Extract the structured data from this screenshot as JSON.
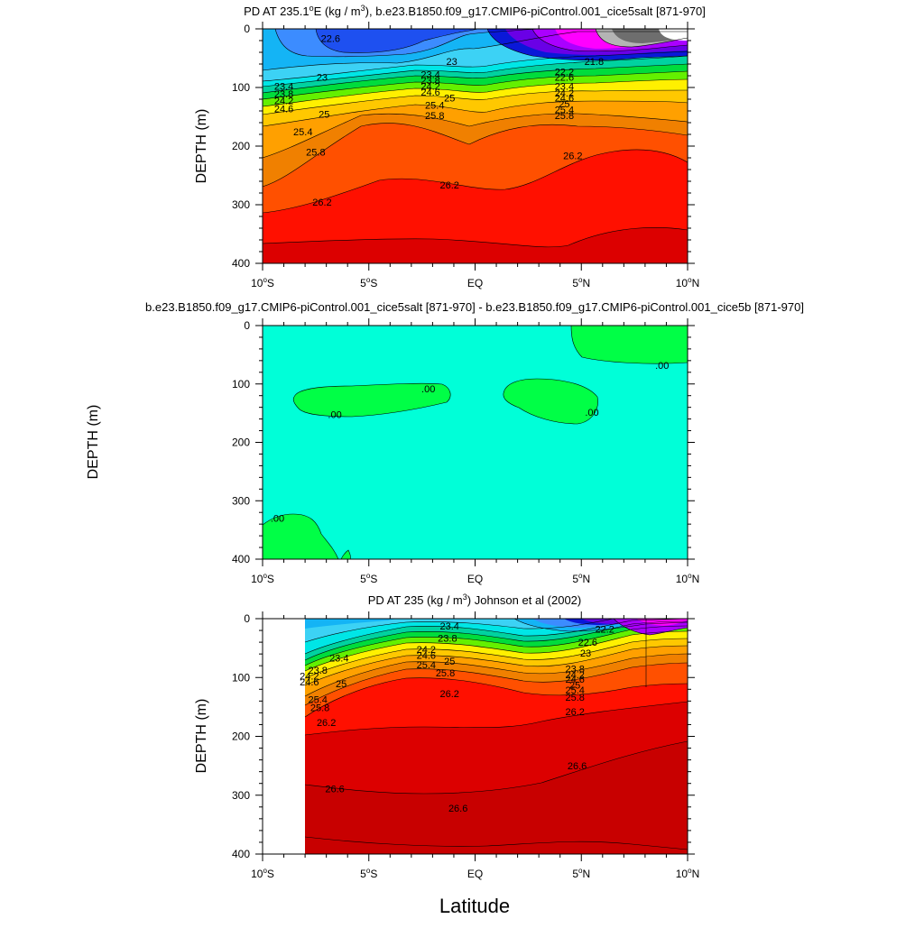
{
  "chart_data": [
    {
      "type": "contour",
      "title": "PD AT 235.1°E (kg / m³), b.e23.B1850.f09_g17.CMIP6-piControl.001_cice5salt [871-970]",
      "title_parts": {
        "main": "PD AT 235.1",
        "deg": "o",
        "unit": "E (kg / m",
        "sup": "3",
        "rest": "), b.e23.B1850.f09_g17.CMIP6-piControl.001_cice5salt [871-970]"
      },
      "ylabel": "DEPTH (m)",
      "xlim": [
        -10,
        10
      ],
      "ylim": [
        400,
        0
      ],
      "contour_labels": [
        {
          "text": "22.6",
          "lat": -6.8,
          "depth": 16
        },
        {
          "text": "23",
          "lat": -7.2,
          "depth": 82
        },
        {
          "text": "23",
          "lat": -1.1,
          "depth": 55
        },
        {
          "text": "23.4",
          "lat": -9.0,
          "depth": 98
        },
        {
          "text": "23.8",
          "lat": -9.0,
          "depth": 111
        },
        {
          "text": "24.2",
          "lat": -9.0,
          "depth": 122
        },
        {
          "text": "24.6",
          "lat": -9.0,
          "depth": 136
        },
        {
          "text": "25",
          "lat": -7.1,
          "depth": 145
        },
        {
          "text": "25.4",
          "lat": -8.1,
          "depth": 175
        },
        {
          "text": "25.8",
          "lat": -7.5,
          "depth": 210
        },
        {
          "text": "26.2",
          "lat": -7.2,
          "depth": 295
        },
        {
          "text": "23.4",
          "lat": -2.1,
          "depth": 78
        },
        {
          "text": "23.8",
          "lat": -2.1,
          "depth": 88
        },
        {
          "text": "24.2",
          "lat": -2.1,
          "depth": 98
        },
        {
          "text": "24.6",
          "lat": -2.1,
          "depth": 108
        },
        {
          "text": "25",
          "lat": -1.2,
          "depth": 118
        },
        {
          "text": "25.4",
          "lat": -1.9,
          "depth": 130
        },
        {
          "text": "25.8",
          "lat": -1.9,
          "depth": 148
        },
        {
          "text": "26.2",
          "lat": -1.2,
          "depth": 266
        },
        {
          "text": "21.8",
          "lat": 5.6,
          "depth": 55
        },
        {
          "text": "22.2",
          "lat": 4.2,
          "depth": 73
        },
        {
          "text": "22.6",
          "lat": 4.2,
          "depth": 82
        },
        {
          "text": "23.4",
          "lat": 4.2,
          "depth": 98
        },
        {
          "text": "24.2",
          "lat": 4.2,
          "depth": 109
        },
        {
          "text": "24.6",
          "lat": 4.2,
          "depth": 118
        },
        {
          "text": "25",
          "lat": 4.2,
          "depth": 128
        },
        {
          "text": "25.4",
          "lat": 4.2,
          "depth": 138
        },
        {
          "text": "25.8",
          "lat": 4.2,
          "depth": 148
        },
        {
          "text": "26.2",
          "lat": 4.6,
          "depth": 216
        }
      ]
    },
    {
      "type": "contour",
      "title": "b.e23.B1850.f09_g17.CMIP6-piControl.001_cice5salt [871-970] - b.e23.B1850.f09_g17.CMIP6-piControl.001_cice5b [871-970]",
      "ylabel": "DEPTH (m)",
      "xlim": [
        -10,
        10
      ],
      "ylim": [
        400,
        0
      ],
      "contour_labels": [
        {
          "text": ".00",
          "lat": -2.2,
          "depth": 108
        },
        {
          "text": ".00",
          "lat": -6.6,
          "depth": 152
        },
        {
          "text": ".00",
          "lat": 5.5,
          "depth": 148
        },
        {
          "text": ".00",
          "lat": 8.8,
          "depth": 68
        },
        {
          "text": ".00",
          "lat": -9.3,
          "depth": 330
        }
      ]
    },
    {
      "type": "contour",
      "title": "PD AT 235 (kg / m³) Johnson et al (2002)",
      "title_parts": {
        "main": "PD AT 235 (kg / m",
        "sup": "3",
        "rest": ") Johnson et al (2002)"
      },
      "ylabel": "DEPTH (m)",
      "xlim": [
        -10,
        10
      ],
      "ylim": [
        400,
        0
      ],
      "data_lat_range": [
        -8,
        10
      ],
      "contour_labels": [
        {
          "text": "23.4",
          "lat": -1.2,
          "depth": 12
        },
        {
          "text": "23.8",
          "lat": -1.3,
          "depth": 33
        },
        {
          "text": "24.2",
          "lat": -2.3,
          "depth": 52
        },
        {
          "text": "24.6",
          "lat": -2.3,
          "depth": 62
        },
        {
          "text": "25",
          "lat": -1.2,
          "depth": 72
        },
        {
          "text": "25.4",
          "lat": -2.3,
          "depth": 78
        },
        {
          "text": "25.8",
          "lat": -1.4,
          "depth": 92
        },
        {
          "text": "26.2",
          "lat": -1.2,
          "depth": 127
        },
        {
          "text": "23.4",
          "lat": -6.4,
          "depth": 67
        },
        {
          "text": "23.8",
          "lat": -7.4,
          "depth": 87
        },
        {
          "text": "24.2",
          "lat": -7.8,
          "depth": 97
        },
        {
          "text": "24.6",
          "lat": -7.8,
          "depth": 107
        },
        {
          "text": "25",
          "lat": -6.3,
          "depth": 110
        },
        {
          "text": "25.4",
          "lat": -7.4,
          "depth": 137
        },
        {
          "text": "25.8",
          "lat": -7.3,
          "depth": 151
        },
        {
          "text": "26.2",
          "lat": -7.0,
          "depth": 176
        },
        {
          "text": "26.6",
          "lat": -6.6,
          "depth": 289
        },
        {
          "text": "26.6",
          "lat": -0.8,
          "depth": 322
        },
        {
          "text": "26.6",
          "lat": 4.8,
          "depth": 250
        },
        {
          "text": "22.2",
          "lat": 6.1,
          "depth": 18
        },
        {
          "text": "22.6",
          "lat": 5.3,
          "depth": 40
        },
        {
          "text": "23",
          "lat": 5.2,
          "depth": 58
        },
        {
          "text": "23.8",
          "lat": 4.7,
          "depth": 85
        },
        {
          "text": "24.2",
          "lat": 4.7,
          "depth": 95
        },
        {
          "text": "24.6",
          "lat": 4.7,
          "depth": 103
        },
        {
          "text": "25",
          "lat": 4.7,
          "depth": 113
        },
        {
          "text": "25.4",
          "lat": 4.7,
          "depth": 121
        },
        {
          "text": "25.8",
          "lat": 4.7,
          "depth": 133
        },
        {
          "text": "26.2",
          "lat": 4.7,
          "depth": 158
        }
      ]
    }
  ],
  "axes": {
    "y_ticks": [
      "0",
      "100",
      "200",
      "300",
      "400"
    ],
    "x_ticks": [
      {
        "num": "10",
        "deg": "o",
        "hem": "S"
      },
      {
        "num": "5",
        "deg": "o",
        "hem": "S"
      },
      {
        "num": "EQ",
        "deg": "",
        "hem": ""
      },
      {
        "num": "5",
        "deg": "o",
        "hem": "N"
      },
      {
        "num": "10",
        "deg": "o",
        "hem": "N"
      }
    ],
    "xlabel": "Latitude",
    "ylabel_outer": "DEPTH (m)"
  },
  "colors": {
    "c_white": "#ffffff",
    "c_gray": "#6e6e6e",
    "c_lgray": "#b4b4b4",
    "c_magenta": "#ff00ff",
    "c_violet": "#aa00ff",
    "c_purple": "#6a00e6",
    "c_dblue": "#0a18d8",
    "c_blue": "#1e50f0",
    "c_mblue": "#3c8cff",
    "c_lblue": "#14b4f5",
    "c_sky": "#3cd2f5",
    "c_cyan": "#00e6e6",
    "c_teal": "#00d2a0",
    "c_green": "#00dc3c",
    "c_lgreen": "#64f000",
    "c_yellow": "#fff000",
    "c_gold": "#ffc800",
    "c_orange": "#ffa000",
    "c_dorange": "#f08000",
    "c_rorange": "#ff5000",
    "c_red": "#ff1000",
    "c_dred": "#dc0000",
    "c_mred": "#c80000",
    "diff_bg": "#00ffd8",
    "diff_green": "#00ff46"
  }
}
